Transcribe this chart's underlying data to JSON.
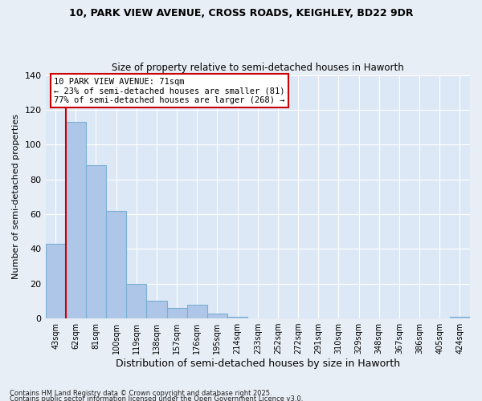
{
  "title_line1": "10, PARK VIEW AVENUE, CROSS ROADS, KEIGHLEY, BD22 9DR",
  "title_line2": "Size of property relative to semi-detached houses in Haworth",
  "xlabel": "Distribution of semi-detached houses by size in Haworth",
  "ylabel": "Number of semi-detached properties",
  "property_size": 71,
  "property_label": "10 PARK VIEW AVENUE: 71sqm",
  "annotation_line1": "← 23% of semi-detached houses are smaller (81)",
  "annotation_line2": "77% of semi-detached houses are larger (268) →",
  "footnote1": "Contains HM Land Registry data © Crown copyright and database right 2025.",
  "footnote2": "Contains public sector information licensed under the Open Government Licence v3.0.",
  "bin_labels": [
    "43sqm",
    "62sqm",
    "81sqm",
    "100sqm",
    "119sqm",
    "138sqm",
    "157sqm",
    "176sqm",
    "195sqm",
    "214sqm",
    "233sqm",
    "252sqm",
    "272sqm",
    "291sqm",
    "310sqm",
    "329sqm",
    "348sqm",
    "367sqm",
    "386sqm",
    "405sqm",
    "424sqm"
  ],
  "bar_values": [
    43,
    113,
    88,
    62,
    20,
    10,
    6,
    8,
    3,
    1,
    0,
    0,
    0,
    0,
    0,
    0,
    0,
    0,
    0,
    0,
    1
  ],
  "bar_color": "#aec6e8",
  "bar_edge_color": "#7ab0d4",
  "annotation_box_color": "#ffffff",
  "annotation_box_edge": "#cc0000",
  "marker_line_color": "#cc0000",
  "ylim": [
    0,
    140
  ],
  "yticks": [
    0,
    20,
    40,
    60,
    80,
    100,
    120,
    140
  ],
  "background_color": "#dce8f5",
  "fig_background_color": "#e8eef5"
}
